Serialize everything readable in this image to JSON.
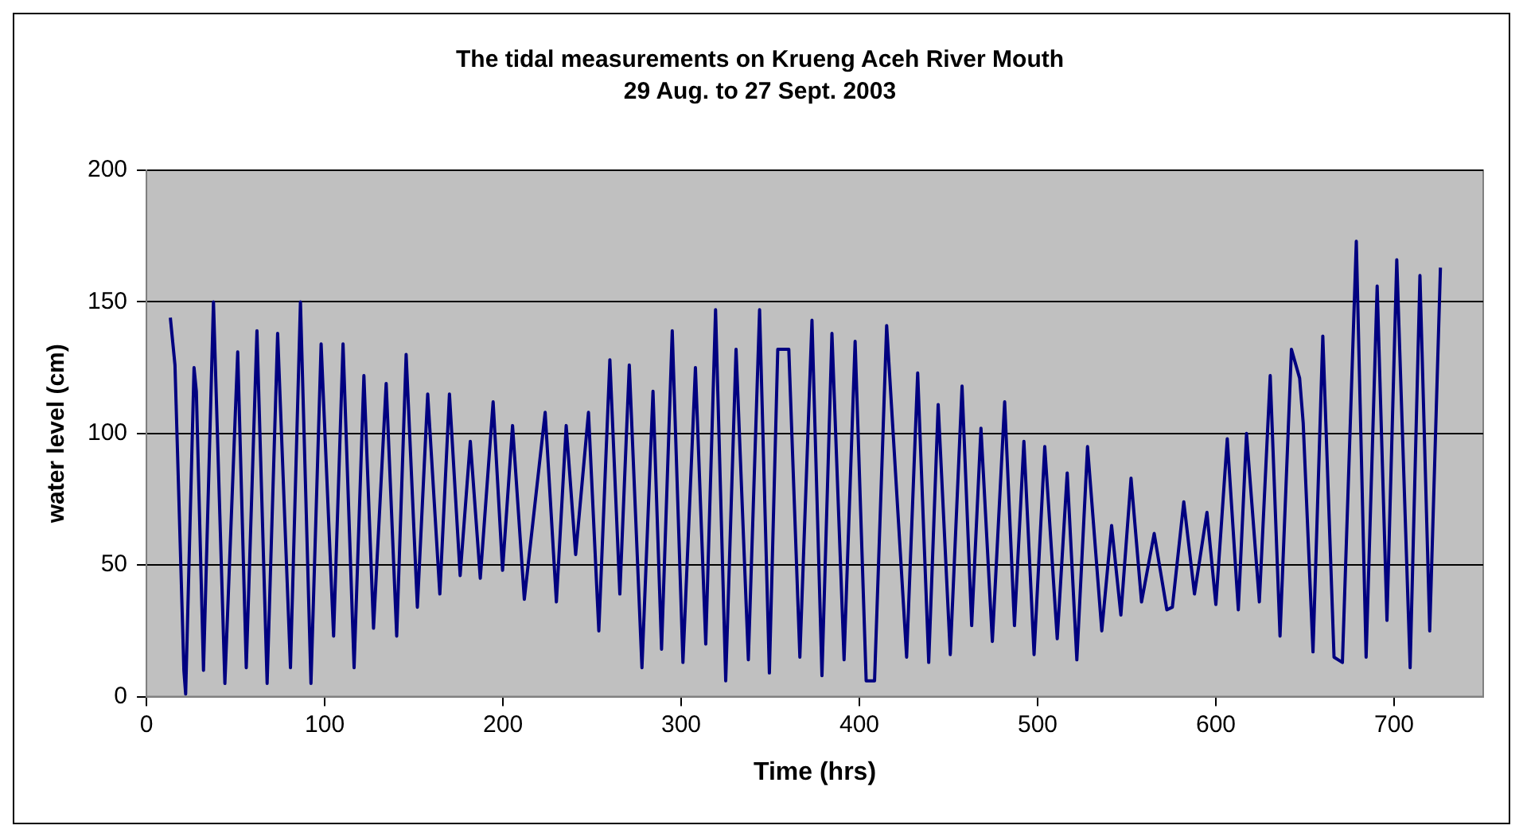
{
  "chart_data": {
    "type": "line",
    "title": "The tidal measurements on Krueng Aceh River Mouth",
    "subtitle": "29 Aug. to 27 Sept. 2003",
    "xlabel": "Time (hrs)",
    "ylabel": "water level (cm)",
    "xlim": [
      0,
      750
    ],
    "xticks": [
      0,
      100,
      200,
      300,
      400,
      500,
      600,
      700
    ],
    "ylim": [
      0,
      200
    ],
    "yticks": [
      0,
      50,
      100,
      150,
      200
    ],
    "grid": "y",
    "legend": false,
    "marker": "none",
    "line_style": "solid",
    "series": [
      {
        "color": "#000080",
        "x": [
          13.4,
          16,
          21,
          22,
          26.7,
          28,
          32,
          37.6,
          44,
          51.2,
          56,
          62,
          67.7,
          73.6,
          80.8,
          86.4,
          92.3,
          98,
          105,
          110.3,
          116.5,
          122,
          127.4,
          134.5,
          140.4,
          145.7,
          152,
          157.8,
          164.6,
          170,
          176,
          181.7,
          187.3,
          194.5,
          199.8,
          205.4,
          212,
          223.7,
          230,
          235.5,
          240.8,
          248,
          253.8,
          260,
          265.6,
          270.9,
          278,
          284.2,
          289,
          295,
          301,
          308,
          313.8,
          319.3,
          325,
          330.8,
          337.7,
          344,
          349.5,
          354.2,
          360.4,
          366.6,
          373.4,
          379,
          384.6,
          391.4,
          397.6,
          403.8,
          408.5,
          415.3,
          426.5,
          432.7,
          438.9,
          444.2,
          451,
          457.6,
          463,
          468.2,
          474.6,
          481.5,
          487,
          492.3,
          498,
          504,
          511,
          516.6,
          522,
          528,
          536,
          541.5,
          546.7,
          552.4,
          558.3,
          565.4,
          572.5,
          575.6,
          582,
          588,
          595,
          600,
          606.4,
          612.6,
          617.2,
          624.4,
          630.5,
          636,
          642.4,
          647,
          649,
          654.5,
          660,
          666.3,
          671,
          678.8,
          684.3,
          690.5,
          696,
          701.5,
          709,
          714.5,
          720,
          726
        ],
        "values": [
          144,
          126,
          10,
          1,
          125,
          116,
          10,
          150,
          5,
          131,
          11,
          139,
          5,
          138,
          11,
          150,
          5,
          134,
          23,
          134,
          11,
          122,
          26,
          119,
          23,
          130,
          34,
          115,
          39,
          115,
          46,
          97,
          45,
          112,
          48,
          103,
          37,
          108,
          36,
          103,
          54,
          108,
          25,
          128,
          39,
          126,
          11,
          116,
          18,
          139,
          13,
          125,
          20,
          147,
          6,
          132,
          14,
          147,
          9,
          132,
          132,
          15,
          143,
          8,
          138,
          14,
          135,
          6,
          6,
          141,
          15,
          123,
          13,
          111,
          16,
          118,
          27,
          102,
          21,
          112,
          27,
          97,
          16,
          95,
          22,
          85,
          14,
          95,
          25,
          65,
          31,
          83,
          36,
          62,
          33,
          34,
          74,
          39,
          70,
          35,
          98,
          33,
          100,
          36,
          122,
          23,
          132,
          121,
          104,
          17,
          137,
          15,
          13,
          173,
          15,
          156,
          29,
          166,
          11,
          160,
          25,
          163
        ]
      }
    ]
  }
}
